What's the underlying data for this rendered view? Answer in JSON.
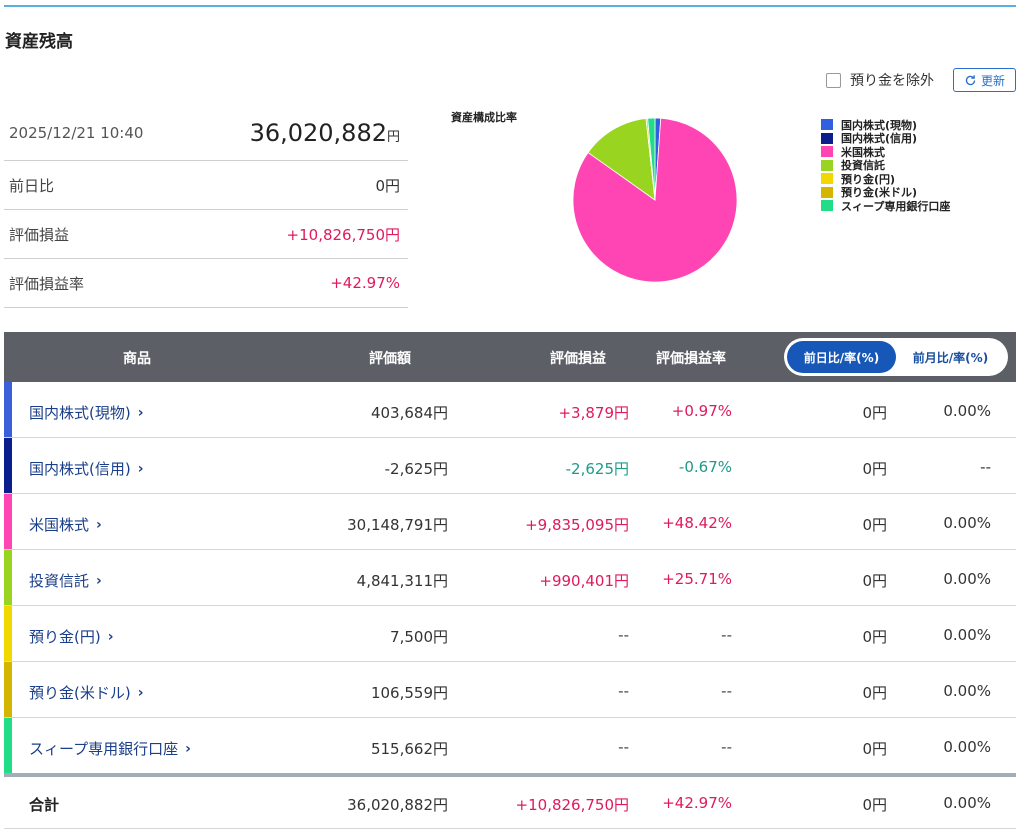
{
  "page": {
    "title": "資産残高"
  },
  "controls": {
    "exclude_label": "預り金を除外",
    "refresh_label": "更新"
  },
  "summary": {
    "datetime": "2025/12/21 10:40",
    "total_value": "36,020,882",
    "yen": "円",
    "rows": [
      {
        "label": "前日比",
        "value": "0円"
      },
      {
        "label": "評価損益",
        "value": "+10,826,750円"
      },
      {
        "label": "評価損益率",
        "value": "+42.97%"
      }
    ]
  },
  "chart_data": {
    "type": "pie",
    "title": "資産構成比率",
    "labels": [
      "国内株式(現物)",
      "国内株式(信用)",
      "米国株式",
      "投資信託",
      "預り金(円)",
      "預り金(米ドル)",
      "スィープ専用銀行口座"
    ],
    "values": [
      403684,
      0,
      30148791,
      4841311,
      7500,
      106559,
      515662
    ],
    "colors": [
      "#3060e0",
      "#0a1f8c",
      "#ff44b4",
      "#99d520",
      "#f0d800",
      "#d4b500",
      "#22dd88"
    ],
    "legend_position": "right"
  },
  "table": {
    "headers": {
      "product": "商品",
      "value": "評価額",
      "gain": "評価損益",
      "rate": "評価損益率"
    },
    "toggle": {
      "day": "前日比/率(%)",
      "month": "前月比/率(%)",
      "active": "day"
    },
    "rows": [
      {
        "name": "国内株式(現物)",
        "color": "#3a5fd9",
        "value": "403,684円",
        "gain": "+3,879円",
        "rate": "+0.97%",
        "day": "0円",
        "day_rate": "0.00%",
        "tone": "pos"
      },
      {
        "name": "国内株式(信用)",
        "color": "#0a1f8c",
        "value": "-2,625円",
        "gain": "-2,625円",
        "rate": "-0.67%",
        "day": "0円",
        "day_rate": "--",
        "tone": "neg"
      },
      {
        "name": "米国株式",
        "color": "#ff44b4",
        "value": "30,148,791円",
        "gain": "+9,835,095円",
        "rate": "+48.42%",
        "day": "0円",
        "day_rate": "0.00%",
        "tone": "pos"
      },
      {
        "name": "投資信託",
        "color": "#99d520",
        "value": "4,841,311円",
        "gain": "+990,401円",
        "rate": "+25.71%",
        "day": "0円",
        "day_rate": "0.00%",
        "tone": "pos"
      },
      {
        "name": "預り金(円)",
        "color": "#f0d800",
        "value": "7,500円",
        "gain": "--",
        "rate": "--",
        "day": "0円",
        "day_rate": "0.00%",
        "tone": "neu"
      },
      {
        "name": "預り金(米ドル)",
        "color": "#d4b500",
        "value": "106,559円",
        "gain": "--",
        "rate": "--",
        "day": "0円",
        "day_rate": "0.00%",
        "tone": "neu"
      },
      {
        "name": "スィープ専用銀行口座",
        "color": "#22dd88",
        "value": "515,662円",
        "gain": "--",
        "rate": "--",
        "day": "0円",
        "day_rate": "0.00%",
        "tone": "neu"
      }
    ],
    "total": {
      "label": "合計",
      "value": "36,020,882円",
      "gain": "+10,826,750円",
      "rate": "+42.97%",
      "day": "0円",
      "day_rate": "0.00%"
    }
  }
}
